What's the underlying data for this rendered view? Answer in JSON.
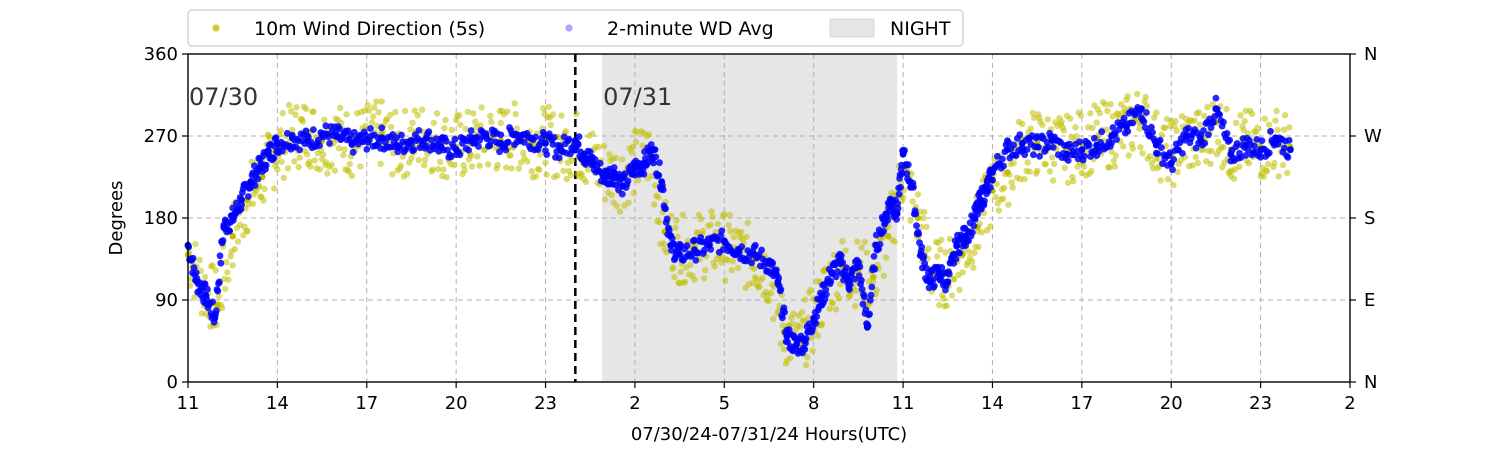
{
  "chart_data": {
    "type": "scatter",
    "xlabel": "07/30/24-07/31/24  Hours(UTC)",
    "ylabel": "Degrees",
    "x_unit": "hours UTC since 07/30 00:00",
    "xlim": [
      11,
      50
    ],
    "ylim": [
      0,
      360
    ],
    "x_tick_labels": [
      "11",
      "14",
      "17",
      "20",
      "23",
      "2",
      "5",
      "8",
      "11",
      "14",
      "17",
      "20",
      "23",
      "2"
    ],
    "y_ticks": [
      "0",
      "90",
      "180",
      "270",
      "360"
    ],
    "y_right_ticks": [
      "N",
      "E",
      "S",
      "W",
      "N"
    ],
    "grid": true,
    "legend_position": "top",
    "legend": [
      {
        "label": "10m Wind Direction (5s)",
        "marker": "dot",
        "color": "#bfbf00"
      },
      {
        "label": "2-minute WD Avg",
        "marker": "dot",
        "color": "#0000ff"
      },
      {
        "label": "NIGHT",
        "marker": "band",
        "color": "#e6e6e6"
      }
    ],
    "annotations": [
      {
        "text": "07/30",
        "x": 11.0,
        "y": 325
      },
      {
        "text": "07/31",
        "x": 24.9,
        "y": 325
      }
    ],
    "midnight_line_x": 24.0,
    "night_band": [
      24.9,
      34.8
    ],
    "series": [
      {
        "name": "2-minute WD Avg",
        "color": "#0000ff",
        "x": [
          11.0,
          11.3,
          11.6,
          11.9,
          12.2,
          12.5,
          12.8,
          13.1,
          13.4,
          13.7,
          14.0,
          14.5,
          15.0,
          15.5,
          16.0,
          16.5,
          17.0,
          17.5,
          18.0,
          18.5,
          19.0,
          19.5,
          20.0,
          20.5,
          21.0,
          21.5,
          22.0,
          22.5,
          23.0,
          23.5,
          24.0,
          24.3,
          24.6,
          25.0,
          25.3,
          25.6,
          26.0,
          26.3,
          26.6,
          26.9,
          27.2,
          27.5,
          28.0,
          28.5,
          29.0,
          29.5,
          30.0,
          30.5,
          30.8,
          31.1,
          31.4,
          31.7,
          32.0,
          32.3,
          32.6,
          32.9,
          33.2,
          33.5,
          33.8,
          34.1,
          34.4,
          34.6,
          34.8,
          35.0,
          35.3,
          35.6,
          35.9,
          36.2,
          36.5,
          36.8,
          37.1,
          37.4,
          37.6,
          37.8,
          38.0,
          38.5,
          39.0,
          39.5,
          40.0,
          40.5,
          41.0,
          41.5,
          42.0,
          42.5,
          43.0,
          43.5,
          44.0,
          44.5,
          45.0,
          45.5,
          46.0,
          46.5,
          47.0,
          47.5,
          48.0
        ],
        "y": [
          150,
          110,
          95,
          70,
          170,
          180,
          200,
          220,
          235,
          250,
          262,
          268,
          265,
          272,
          270,
          262,
          266,
          268,
          260,
          265,
          268,
          258,
          255,
          265,
          270,
          262,
          272,
          268,
          262,
          256,
          265,
          250,
          240,
          225,
          230,
          215,
          235,
          240,
          255,
          220,
          150,
          140,
          145,
          150,
          155,
          145,
          140,
          130,
          110,
          50,
          40,
          45,
          70,
          95,
          120,
          130,
          110,
          130,
          60,
          150,
          180,
          200,
          185,
          250,
          215,
          140,
          110,
          120,
          110,
          150,
          160,
          180,
          200,
          210,
          230,
          255,
          262,
          258,
          265,
          250,
          255,
          260,
          270,
          280,
          300,
          260,
          240,
          270,
          265,
          300,
          250,
          260,
          255,
          268,
          255
        ]
      },
      {
        "name": "10m Wind Direction (5s)",
        "color": "#bfbf00",
        "x": [
          11.0,
          11.5,
          12.0,
          12.5,
          13.0,
          13.5,
          14.0,
          14.5,
          15.0,
          15.5,
          16.0,
          16.5,
          17.0,
          17.5,
          18.0,
          18.5,
          19.0,
          19.5,
          20.0,
          20.5,
          21.0,
          21.5,
          22.0,
          22.5,
          23.0,
          23.5,
          24.0,
          24.5,
          25.0,
          25.5,
          26.0,
          26.5,
          27.0,
          27.5,
          28.0,
          28.5,
          29.0,
          29.5,
          30.0,
          30.5,
          31.0,
          31.5,
          32.0,
          32.5,
          33.0,
          33.5,
          34.0,
          34.5,
          35.0,
          35.5,
          36.0,
          36.5,
          37.0,
          37.5,
          38.0,
          38.5,
          39.0,
          39.5,
          40.0,
          40.5,
          41.0,
          41.5,
          42.0,
          42.5,
          43.0,
          43.5,
          44.0,
          44.5,
          45.0,
          45.5,
          46.0,
          46.5,
          47.0,
          47.5,
          48.0
        ],
        "y": [
          140,
          105,
          85,
          160,
          200,
          225,
          255,
          270,
          275,
          265,
          270,
          262,
          268,
          272,
          258,
          266,
          270,
          262,
          258,
          262,
          268,
          265,
          270,
          262,
          266,
          258,
          262,
          245,
          230,
          225,
          240,
          250,
          165,
          145,
          148,
          152,
          150,
          140,
          135,
          120,
          55,
          42,
          70,
          110,
          125,
          120,
          115,
          160,
          230,
          180,
          120,
          120,
          140,
          170,
          210,
          230,
          258,
          262,
          258,
          255,
          262,
          268,
          272,
          278,
          290,
          262,
          250,
          268,
          262,
          285,
          255,
          262,
          258,
          265,
          258
        ]
      }
    ]
  }
}
